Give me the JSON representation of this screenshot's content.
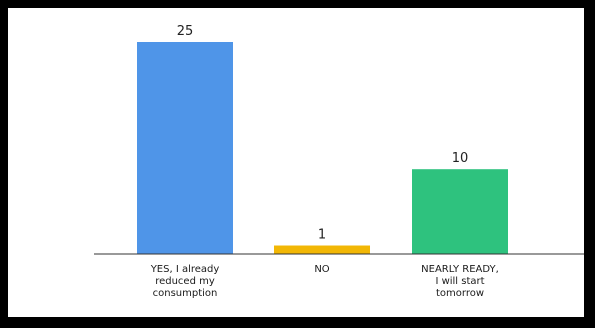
{
  "chart_data": {
    "type": "bar",
    "categories": [
      [
        "YES, I already",
        "reduced my",
        "consumption"
      ],
      [
        "NO"
      ],
      [
        "NEARLY READY,",
        "I will start",
        "tomorrow"
      ]
    ],
    "values": [
      25,
      1,
      10
    ],
    "value_labels": [
      "25",
      "1",
      "10"
    ],
    "colors": [
      "#4f95e8",
      "#f2b705",
      "#2ec27e"
    ],
    "ylim": [
      0,
      25
    ],
    "grid": false,
    "title": "",
    "xlabel": "",
    "ylabel": ""
  }
}
